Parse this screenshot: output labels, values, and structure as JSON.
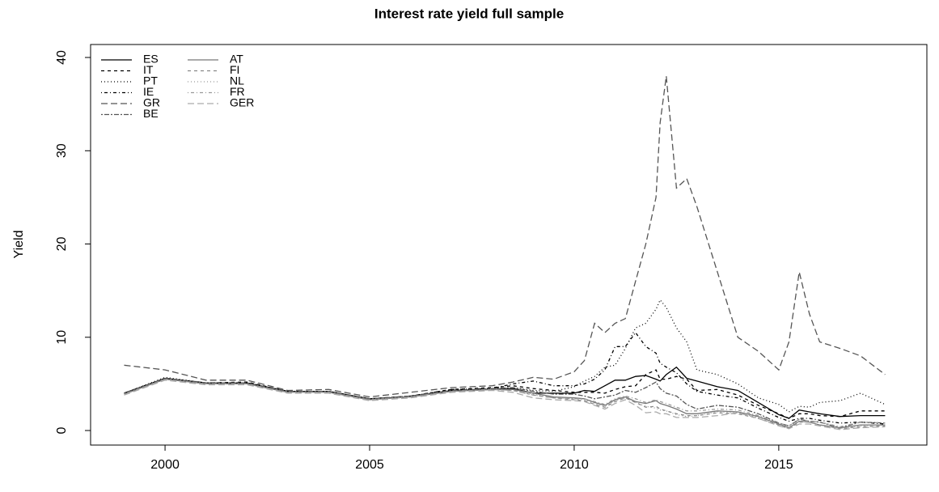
{
  "chart_data": {
    "type": "line",
    "title": "Interest rate yield full sample",
    "ylabel": "Yield",
    "x": [
      1999,
      2000,
      2001,
      2002,
      2003,
      2004,
      2005,
      2006,
      2007,
      2008,
      2008.5,
      2009,
      2009.5,
      2010,
      2010.25,
      2010.5,
      2010.75,
      2011,
      2011.25,
      2011.5,
      2011.75,
      2012,
      2012.1,
      2012.25,
      2012.5,
      2012.75,
      2013,
      2013.5,
      2014,
      2014.5,
      2015,
      2015.25,
      2015.5,
      2015.75,
      2016,
      2016.5,
      2017,
      2017.6
    ],
    "xlim": [
      1998.18,
      2018.62
    ],
    "xticks": [
      2000,
      2005,
      2010,
      2015
    ],
    "ylim": [
      -1.56,
      41.39
    ],
    "yticks": [
      0,
      10,
      20,
      30,
      40
    ],
    "grid": false,
    "legend": "top-left",
    "series": [
      {
        "name": "ES",
        "color": "#000000",
        "dash": "none",
        "values": [
          4,
          5.6,
          5.1,
          5.1,
          4.2,
          4.2,
          3.4,
          3.6,
          4.3,
          4.4,
          4.5,
          4,
          4,
          4,
          4.3,
          4.2,
          4.8,
          5.4,
          5.4,
          5.8,
          5.9,
          5.5,
          5.3,
          6,
          6.8,
          5.6,
          5.3,
          4.7,
          4.3,
          3,
          1.7,
          1.3,
          2.2,
          2,
          1.8,
          1.5,
          1.6,
          1.6
        ]
      },
      {
        "name": "IT",
        "color": "#000000",
        "dash": "4 4",
        "values": [
          4,
          5.6,
          5.1,
          5.2,
          4.2,
          4.2,
          3.4,
          3.7,
          4.4,
          4.6,
          4.8,
          4.5,
          4.3,
          4.1,
          4.1,
          4.1,
          4,
          4.4,
          4.7,
          4.8,
          6,
          6.5,
          5.5,
          5.5,
          5.8,
          5.5,
          4.3,
          4.4,
          3.8,
          2.7,
          1.8,
          1.3,
          1.8,
          1.8,
          1.6,
          1.5,
          2.1,
          2.1
        ]
      },
      {
        "name": "PT",
        "color": "#000000",
        "dash": "1 3",
        "values": [
          4,
          5.7,
          5.1,
          5.1,
          4.2,
          4.2,
          3.4,
          3.6,
          4.3,
          4.5,
          4.6,
          4.3,
          4.2,
          4.7,
          5.3,
          5.8,
          6.8,
          7,
          8.8,
          11,
          11.5,
          13,
          14,
          13.2,
          11,
          9.5,
          6.5,
          6,
          5,
          3.5,
          2.8,
          2,
          2.6,
          2.5,
          3,
          3.2,
          4,
          2.8
        ]
      },
      {
        "name": "IE",
        "color": "#000000",
        "dash": "1 3 4 3",
        "values": [
          4,
          5.6,
          5,
          5.1,
          4.2,
          4.1,
          3.3,
          3.7,
          4.4,
          4.5,
          5,
          5.3,
          4.8,
          4.8,
          5,
          5.5,
          6.5,
          9,
          9,
          10.5,
          9,
          8.3,
          7.2,
          6.8,
          6.2,
          5,
          4.2,
          3.8,
          3.5,
          2.4,
          1.4,
          1,
          1.3,
          1.3,
          1.1,
          0.8,
          0.9,
          0.7
        ]
      },
      {
        "name": "GR",
        "color": "#555555",
        "dash": "8 4",
        "values": [
          7,
          6.5,
          5.4,
          5.4,
          4.3,
          4.4,
          3.6,
          4.1,
          4.6,
          4.8,
          5.2,
          5.7,
          5.5,
          6.3,
          7.5,
          11.5,
          10.5,
          11.5,
          12,
          16,
          20,
          25,
          33,
          38,
          26,
          27,
          24,
          17,
          10,
          8.5,
          6.5,
          9.5,
          17,
          12.5,
          9.5,
          8.8,
          8,
          6
        ]
      },
      {
        "name": "BE",
        "color": "#555555",
        "dash": "2 2 6 2",
        "values": [
          4,
          5.6,
          5.1,
          5.1,
          4.2,
          4.2,
          3.4,
          3.7,
          4.3,
          4.5,
          4.6,
          4.2,
          3.9,
          3.9,
          3.7,
          3.4,
          3.6,
          3.8,
          4.3,
          4.1,
          4.6,
          5.2,
          4.5,
          4,
          3.7,
          2.8,
          2.3,
          2.7,
          2.5,
          1.8,
          0.8,
          0.5,
          1.2,
          1,
          0.9,
          0.3,
          0.9,
          0.8
        ]
      },
      {
        "name": "AT",
        "color": "#777777",
        "dash": "none",
        "values": [
          3.9,
          5.5,
          5,
          5,
          4.1,
          4.1,
          3.3,
          3.6,
          4.2,
          4.4,
          4.4,
          4,
          3.6,
          3.5,
          3.4,
          3,
          2.7,
          3.3,
          3.6,
          3.1,
          2.9,
          3.2,
          2.9,
          2.7,
          2.3,
          1.8,
          1.8,
          2.1,
          2,
          1.5,
          0.7,
          0.3,
          1,
          0.9,
          0.6,
          0.3,
          0.6,
          0.6
        ]
      },
      {
        "name": "FI",
        "color": "#888888",
        "dash": "4 4",
        "values": [
          3.9,
          5.5,
          5,
          5,
          4.1,
          4.1,
          3.3,
          3.6,
          4.2,
          4.4,
          4.3,
          3.8,
          3.5,
          3.3,
          3.2,
          2.8,
          2.5,
          3.1,
          3.5,
          3,
          2.5,
          2.6,
          2.3,
          2.1,
          1.8,
          1.6,
          1.6,
          1.9,
          1.8,
          1.3,
          0.6,
          0.2,
          0.9,
          0.9,
          0.6,
          0.2,
          0.4,
          0.5
        ]
      },
      {
        "name": "NL",
        "color": "#999999",
        "dash": "1 3",
        "values": [
          3.9,
          5.5,
          5,
          5,
          4.1,
          4.1,
          3.3,
          3.6,
          4.2,
          4.4,
          4.3,
          3.9,
          3.5,
          3.4,
          3.3,
          2.9,
          2.6,
          3.2,
          3.5,
          3,
          2.6,
          2.4,
          2.2,
          2.1,
          1.7,
          1.5,
          1.6,
          2,
          1.9,
          1.4,
          0.6,
          0.3,
          1,
          0.9,
          0.6,
          0.2,
          0.5,
          0.6
        ]
      },
      {
        "name": "FR",
        "color": "#999999",
        "dash": "1 3 4 3",
        "values": [
          3.9,
          5.5,
          5,
          5,
          4.1,
          4.1,
          3.3,
          3.6,
          4.2,
          4.4,
          4.3,
          3.8,
          3.5,
          3.4,
          3.4,
          3.1,
          2.8,
          3.4,
          3.7,
          3.4,
          3,
          3.3,
          3.1,
          2.9,
          2.5,
          2.1,
          2.1,
          2.3,
          2.2,
          1.6,
          0.8,
          0.5,
          1.2,
          1,
          0.9,
          0.4,
          0.9,
          0.8
        ]
      },
      {
        "name": "GER",
        "color": "#aaaaaa",
        "dash": "8 4",
        "values": [
          3.8,
          5.4,
          4.9,
          4.9,
          4,
          4,
          3.2,
          3.5,
          4.1,
          4.3,
          4.1,
          3.5,
          3.3,
          3.2,
          3.1,
          2.7,
          2.3,
          2.9,
          3.3,
          2.7,
          1.9,
          2,
          1.8,
          1.8,
          1.4,
          1.4,
          1.4,
          1.6,
          1.9,
          1.3,
          0.5,
          0.2,
          0.7,
          0.7,
          0.5,
          0.1,
          0.3,
          0.4
        ]
      }
    ]
  }
}
